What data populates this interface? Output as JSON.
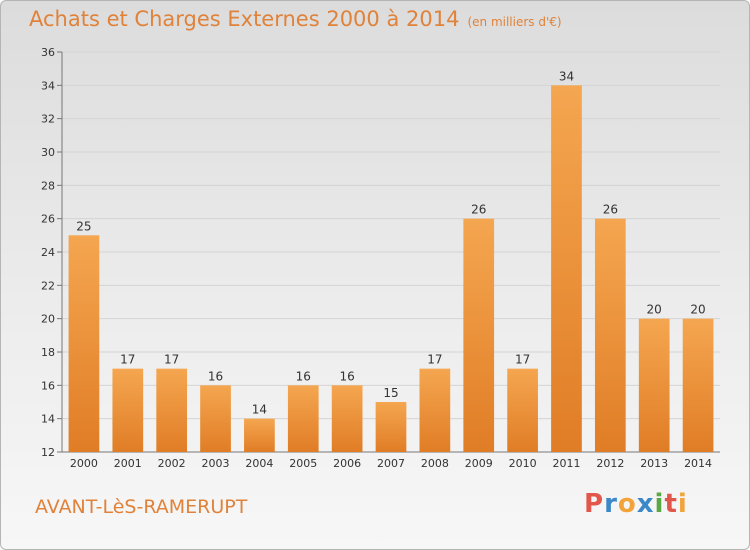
{
  "chart_data": {
    "type": "bar",
    "title": "Achats et Charges Externes 2000 à 2014",
    "unit": "(en milliers d'€)",
    "categories": [
      "2000",
      "2001",
      "2002",
      "2003",
      "2004",
      "2005",
      "2006",
      "2007",
      "2008",
      "2009",
      "2010",
      "2011",
      "2012",
      "2013",
      "2014"
    ],
    "values": [
      25,
      17,
      17,
      16,
      14,
      16,
      16,
      15,
      17,
      26,
      17,
      34,
      26,
      20,
      20
    ],
    "ylim": [
      12,
      36
    ],
    "yticks": [
      12,
      14,
      16,
      18,
      20,
      22,
      24,
      26,
      28,
      30,
      32,
      34,
      36
    ],
    "grid": true,
    "data_labels": true
  },
  "footer": {
    "commune": "AVANT-LèS-RAMERUPT",
    "logo": "Proxiti"
  },
  "colors": {
    "bar_light": "#f5a650",
    "bar_dark": "#e07d26",
    "title": "#e0823a",
    "logo": [
      "#e2574c",
      "#3b88c8",
      "#f2a33a",
      "#3b88c8",
      "#5aa843",
      "#e2574c",
      "#f2a33a"
    ]
  }
}
